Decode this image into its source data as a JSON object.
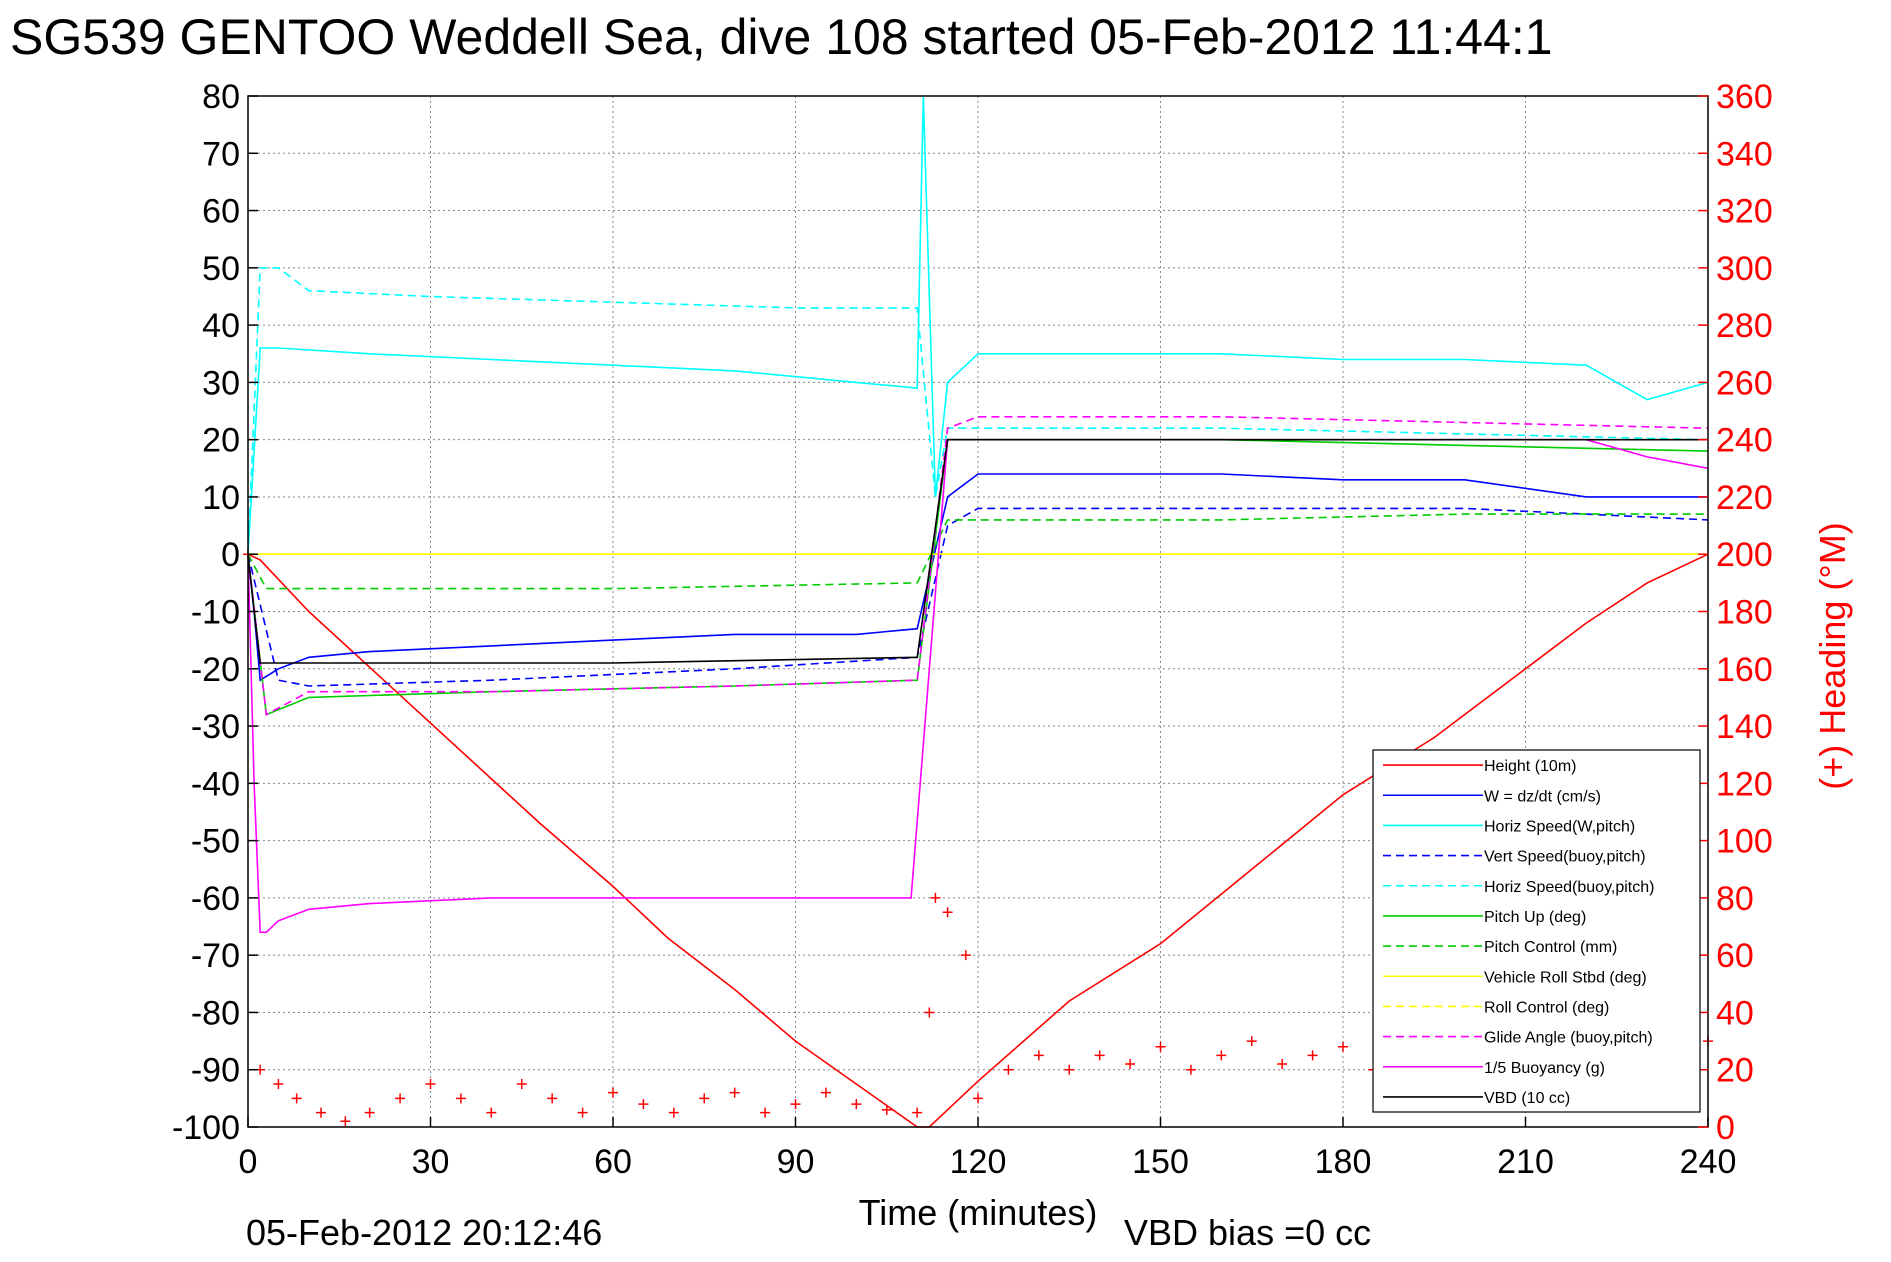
{
  "chart_data": {
    "type": "line",
    "title": "SG539 GENTOO Weddell Sea, dive 108 started 05-Feb-2012 11:44:1",
    "xlabel": "Time (minutes)",
    "ylabel_right": "(+) Heading (°M)",
    "xlim": [
      0,
      240
    ],
    "ylim": [
      -100,
      80
    ],
    "ylim_right": [
      0,
      360
    ],
    "x_ticks": [
      0,
      30,
      60,
      90,
      120,
      150,
      180,
      210,
      240
    ],
    "y_ticks": [
      -100,
      -90,
      -80,
      -70,
      -60,
      -50,
      -40,
      -30,
      -20,
      -10,
      0,
      10,
      20,
      30,
      40,
      50,
      60,
      70,
      80
    ],
    "y_right_ticks": [
      0,
      20,
      40,
      60,
      80,
      100,
      120,
      140,
      160,
      180,
      200,
      220,
      240,
      260,
      280,
      300,
      320,
      340,
      360
    ],
    "grid": true,
    "legend_position": "bottom-right",
    "footer_left": "05-Feb-2012 20:12:46",
    "footer_right": "VBD bias =0 cc",
    "series": [
      {
        "name": "Height (10m)",
        "color": "#ff0000",
        "style": "solid",
        "x": [
          0,
          2,
          10,
          48,
          60,
          69,
          80,
          90,
          110,
          112,
          115,
          120,
          135,
          150,
          165,
          180,
          195,
          210,
          220,
          230,
          240
        ],
        "y": [
          0,
          -1,
          -10,
          -47,
          -58,
          -67,
          -76,
          -85,
          -100,
          -100,
          -97,
          -92,
          -78,
          -68,
          -55,
          -42,
          -32,
          -20,
          -12,
          -5,
          0
        ]
      },
      {
        "name": "W = dz/dt (cm/s)",
        "color": "#0000ff",
        "style": "solid",
        "x": [
          0,
          1,
          2,
          5,
          10,
          20,
          40,
          60,
          80,
          100,
          110,
          115,
          120,
          140,
          160,
          180,
          200,
          220,
          240
        ],
        "y": [
          0,
          -10,
          -22,
          -20,
          -18,
          -17,
          -16,
          -15,
          -14,
          -14,
          -13,
          10,
          14,
          14,
          14,
          13,
          13,
          10,
          10
        ]
      },
      {
        "name": "Horiz Speed(W,pitch)",
        "color": "#00ffff",
        "style": "solid",
        "x": [
          0,
          2,
          5,
          20,
          40,
          60,
          80,
          100,
          110,
          111,
          113,
          115,
          120,
          140,
          160,
          180,
          200,
          220,
          230,
          240
        ],
        "y": [
          0,
          36,
          36,
          35,
          34,
          33,
          32,
          30,
          29,
          80,
          10,
          30,
          35,
          35,
          35,
          34,
          34,
          33,
          27,
          30
        ]
      },
      {
        "name": "Vert Speed(buoy,pitch)",
        "color": "#0000ff",
        "style": "dashed",
        "x": [
          0,
          5,
          10,
          40,
          80,
          110,
          115,
          120,
          160,
          200,
          240
        ],
        "y": [
          0,
          -22,
          -23,
          -22,
          -20,
          -18,
          5,
          8,
          8,
          8,
          6
        ]
      },
      {
        "name": "Horiz Speed(buoy,pitch)",
        "color": "#00ffff",
        "style": "dashed",
        "x": [
          0,
          2,
          5,
          10,
          30,
          60,
          90,
          110,
          113,
          115,
          120,
          160,
          200,
          240
        ],
        "y": [
          0,
          50,
          50,
          46,
          45,
          44,
          43,
          43,
          10,
          22,
          22,
          22,
          21,
          20
        ]
      },
      {
        "name": "Pitch Up (deg)",
        "color": "#00cc00",
        "style": "solid",
        "x": [
          0,
          3,
          10,
          40,
          80,
          110,
          115,
          120,
          160,
          200,
          240
        ],
        "y": [
          0,
          -28,
          -25,
          -24,
          -23,
          -22,
          20,
          20,
          20,
          19,
          18
        ]
      },
      {
        "name": "Pitch Control (mm)",
        "color": "#00cc00",
        "style": "dashed",
        "x": [
          0,
          3,
          10,
          60,
          110,
          115,
          120,
          160,
          200,
          240
        ],
        "y": [
          0,
          -6,
          -6,
          -6,
          -5,
          6,
          6,
          6,
          7,
          7
        ]
      },
      {
        "name": "Vehicle Roll Stbd (deg)",
        "color": "#ffff00",
        "style": "solid",
        "x": [
          0,
          3,
          10,
          50,
          100,
          110,
          115,
          120,
          160,
          200,
          240
        ],
        "y": [
          0,
          0,
          0,
          0,
          0,
          0,
          0,
          0,
          0,
          0,
          0
        ]
      },
      {
        "name": "Roll Control (deg)",
        "color": "#ffff00",
        "style": "dashed",
        "x": [
          0,
          3,
          10,
          50,
          100,
          110,
          115,
          120,
          160,
          200,
          240
        ],
        "y": [
          0,
          0,
          0,
          0,
          0,
          0,
          0,
          0,
          0,
          0,
          0
        ]
      },
      {
        "name": "Glide Angle (buoy,pitch)",
        "color": "#ff00ff",
        "style": "dashed",
        "x": [
          0,
          3,
          10,
          40,
          80,
          110,
          115,
          120,
          160,
          200,
          240
        ],
        "y": [
          0,
          -28,
          -24,
          -24,
          -23,
          -22,
          22,
          24,
          24,
          23,
          22
        ]
      },
      {
        "name": "1/5 Buoyancy (g)",
        "color": "#ff00ff",
        "style": "solid",
        "x": [
          0,
          1,
          2,
          3,
          5,
          10,
          20,
          40,
          60,
          80,
          100,
          109,
          115,
          120,
          160,
          200,
          220,
          230,
          240
        ],
        "y": [
          0,
          -40,
          -66,
          -66,
          -64,
          -62,
          -61,
          -60,
          -60,
          -60,
          -60,
          -60,
          20,
          20,
          20,
          20,
          20,
          17,
          15
        ]
      },
      {
        "name": "VBD (10 cc)",
        "color": "#000000",
        "style": "solid",
        "x": [
          0,
          1,
          2,
          4,
          10,
          20,
          60,
          110,
          115,
          120,
          160,
          200,
          225,
          240
        ],
        "y": [
          0,
          -10,
          -19,
          -19,
          -19,
          -19,
          -19,
          -18,
          20,
          20,
          20,
          20,
          20,
          20
        ]
      }
    ],
    "heading": {
      "name": "(+) Heading",
      "axis": "right",
      "color": "#ff0000",
      "marker": "+",
      "x": [
        0,
        2,
        5,
        8,
        12,
        16,
        20,
        25,
        30,
        35,
        40,
        45,
        50,
        55,
        60,
        65,
        70,
        75,
        80,
        85,
        90,
        95,
        100,
        105,
        110,
        112,
        113,
        115,
        118,
        120,
        125,
        130,
        135,
        140,
        145,
        150,
        155,
        160,
        165,
        170,
        175,
        180,
        185,
        190,
        195,
        200,
        205,
        210,
        215,
        220,
        225,
        230,
        235,
        240
      ],
      "y": [
        200,
        20,
        15,
        10,
        5,
        2,
        5,
        10,
        15,
        10,
        5,
        15,
        10,
        5,
        12,
        8,
        5,
        10,
        12,
        5,
        8,
        12,
        8,
        6,
        5,
        40,
        80,
        75,
        60,
        10,
        20,
        25,
        20,
        25,
        22,
        28,
        20,
        25,
        30,
        22,
        25,
        28,
        20,
        25,
        22,
        28,
        25,
        20,
        22,
        25,
        20,
        22,
        25,
        30
      ]
    }
  }
}
